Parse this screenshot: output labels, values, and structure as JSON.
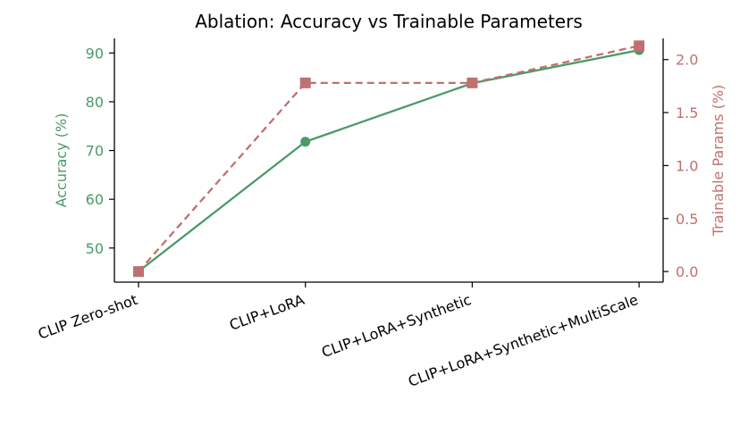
{
  "chart_data": {
    "type": "line",
    "title": "Ablation: Accuracy vs Trainable Parameters",
    "categories": [
      "CLIP Zero-shot",
      "CLIP+LoRA",
      "CLIP+LoRA+Synthetic",
      "CLIP+LoRA+Synthetic+MultiScale"
    ],
    "left_axis": {
      "label": "Accuracy (%)",
      "color": "#4a9a6a",
      "ticks": [
        "50",
        "60",
        "70",
        "80",
        "90"
      ],
      "ylim": [
        43,
        93
      ]
    },
    "right_axis": {
      "label": "Trainable Params (%)",
      "color": "#c07070",
      "ticks": [
        "0.0",
        "0.5",
        "1.0",
        "1.5",
        "2.0"
      ],
      "ylim": [
        -0.1,
        2.2
      ]
    },
    "series": [
      {
        "axis": "left",
        "values": [
          45.2,
          71.8,
          83.8,
          90.6
        ],
        "color": "#4a9a6a",
        "marker": "circle",
        "linestyle": "solid"
      },
      {
        "axis": "right",
        "values": [
          0.0,
          1.78,
          1.78,
          2.13
        ],
        "color": "#c07070",
        "marker": "square",
        "linestyle": "dashed"
      }
    ],
    "grid": false,
    "spines": [
      "left",
      "bottom",
      "right"
    ]
  }
}
